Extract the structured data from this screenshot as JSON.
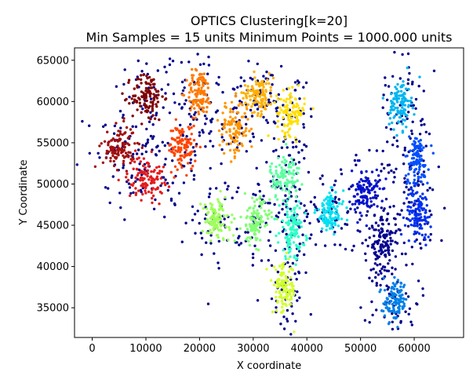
{
  "chart_data": {
    "type": "scatter",
    "title_line1": "OPTICS Clustering[k=20]",
    "title_line2": "Min Samples =  15 units   Minimum Points = 1000.000 units",
    "xlabel": "X coordinate",
    "ylabel": "Y Coordinate",
    "xlim": [
      -3300,
      69200
    ],
    "ylim": [
      31400,
      66500
    ],
    "xticks": [
      0,
      10000,
      20000,
      30000,
      40000,
      50000,
      60000
    ],
    "yticks": [
      35000,
      40000,
      45000,
      50000,
      55000,
      60000,
      65000
    ],
    "noise_color": "#00008b",
    "clusters": [
      {
        "center": [
          10300,
          60600
        ],
        "spread": [
          1500,
          1500
        ],
        "color": "#800000"
      },
      {
        "center": [
          20000,
          61000
        ],
        "spread": [
          1200,
          1400
        ],
        "color": "#ff7a00"
      },
      {
        "center": [
          31000,
          61000
        ],
        "spread": [
          1400,
          1200
        ],
        "color": "#ffb000"
      },
      {
        "center": [
          37000,
          58600
        ],
        "spread": [
          1300,
          1300
        ],
        "color": "#ffe000"
      },
      {
        "center": [
          26500,
          56700
        ],
        "spread": [
          1400,
          1700
        ],
        "color": "#ff9500"
      },
      {
        "center": [
          5000,
          54500
        ],
        "spread": [
          1500,
          1300
        ],
        "color": "#a01010"
      },
      {
        "center": [
          16800,
          54500
        ],
        "spread": [
          1300,
          1400
        ],
        "color": "#ff4500"
      },
      {
        "center": [
          10000,
          50800
        ],
        "spread": [
          1700,
          1300
        ],
        "color": "#e41a1c"
      },
      {
        "center": [
          36000,
          50800
        ],
        "spread": [
          1400,
          1400
        ],
        "color": "#5cffa0"
      },
      {
        "center": [
          51000,
          49000
        ],
        "spread": [
          1300,
          1400
        ],
        "color": "#0010d0"
      },
      {
        "center": [
          60500,
          52800
        ],
        "spread": [
          1100,
          1600
        ],
        "color": "#0050ff"
      },
      {
        "center": [
          60800,
          46500
        ],
        "spread": [
          1200,
          1500
        ],
        "color": "#0030f0"
      },
      {
        "center": [
          57400,
          59700
        ],
        "spread": [
          1000,
          1500
        ],
        "color": "#00b5f0"
      },
      {
        "center": [
          23000,
          45500
        ],
        "spread": [
          1300,
          1300
        ],
        "color": "#9dff5a"
      },
      {
        "center": [
          30500,
          45500
        ],
        "spread": [
          1300,
          1400
        ],
        "color": "#82ff75"
      },
      {
        "center": [
          37300,
          44400
        ],
        "spread": [
          1200,
          1700
        ],
        "color": "#2cffc8"
      },
      {
        "center": [
          44300,
          46500
        ],
        "spread": [
          1300,
          1200
        ],
        "color": "#00e0f0"
      },
      {
        "center": [
          54000,
          42500
        ],
        "spread": [
          1200,
          1700
        ],
        "color": "#000090"
      },
      {
        "center": [
          35800,
          37200
        ],
        "spread": [
          1100,
          1500
        ],
        "color": "#d0ff2a"
      },
      {
        "center": [
          56500,
          35800
        ],
        "spread": [
          1100,
          1200
        ],
        "color": "#0080e8"
      }
    ]
  }
}
